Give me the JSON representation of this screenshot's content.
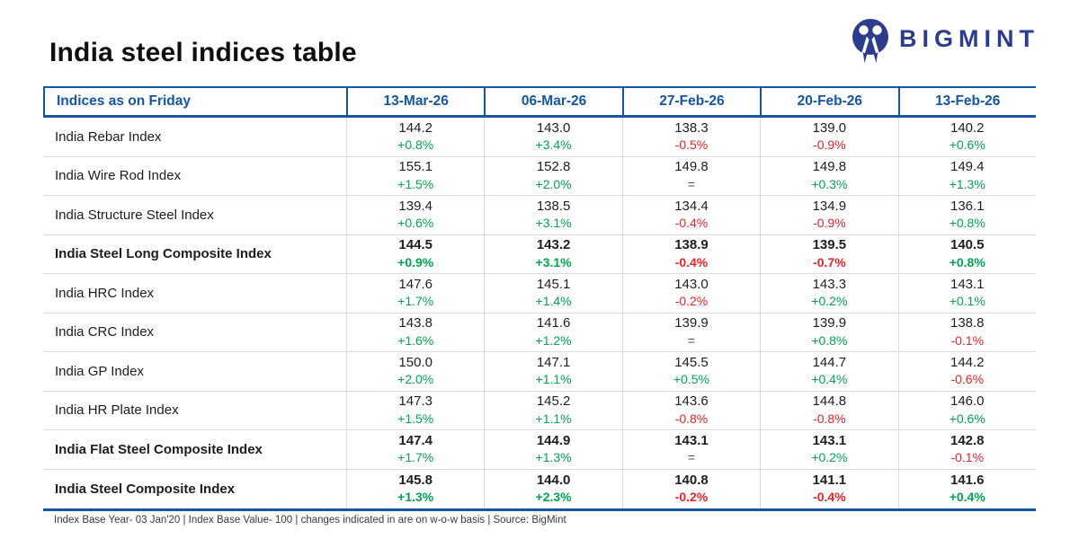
{
  "page": {
    "title": "India steel indices table",
    "brand": "BIGMINT",
    "footer": "Index Base Year- 03 Jan'20 | Index Base Value- 100 | changes indicated in are on w-o-w basis | Source: BigMint"
  },
  "colors": {
    "accent_blue": "#1456a4",
    "brand_navy": "#2c3d8f",
    "up_green": "#00a651",
    "down_red": "#e8232a",
    "neutral_equal_gray": "#4f4f4f"
  },
  "icons": {
    "brand_icon": "bigmint-people-m-monogram"
  },
  "chart_data": {
    "type": "table",
    "title": "India steel indices table",
    "header": [
      "Indices as on Friday",
      "13-Mar-26",
      "06-Mar-26",
      "27-Feb-26",
      "20-Feb-26",
      "13-Feb-26"
    ],
    "cell_format": [
      "index_value",
      "wow_change_percent",
      "change_direction"
    ],
    "rows": [
      {
        "label": "India Rebar Index",
        "bold": false,
        "pct_bold": false,
        "cells": [
          [
            "144.2",
            "+0.8%",
            "up"
          ],
          [
            "143.0",
            "+3.4%",
            "up"
          ],
          [
            "138.3",
            "-0.5%",
            "down"
          ],
          [
            "139.0",
            "-0.9%",
            "down"
          ],
          [
            "140.2",
            "+0.6%",
            "up"
          ]
        ]
      },
      {
        "label": "India Wire Rod Index",
        "bold": false,
        "pct_bold": false,
        "cells": [
          [
            "155.1",
            "+1.5%",
            "up"
          ],
          [
            "152.8",
            "+2.0%",
            "up"
          ],
          [
            "149.8",
            "=",
            "eq"
          ],
          [
            "149.8",
            "+0.3%",
            "up"
          ],
          [
            "149.4",
            "+1.3%",
            "up"
          ]
        ]
      },
      {
        "label": "India Structure Steel Index",
        "bold": false,
        "pct_bold": false,
        "cells": [
          [
            "139.4",
            "+0.6%",
            "up"
          ],
          [
            "138.5",
            "+3.1%",
            "up"
          ],
          [
            "134.4",
            "-0.4%",
            "down"
          ],
          [
            "134.9",
            "-0.9%",
            "down"
          ],
          [
            "136.1",
            "+0.8%",
            "up"
          ]
        ]
      },
      {
        "label": "India Steel Long Composite Index",
        "bold": true,
        "pct_bold": true,
        "cells": [
          [
            "144.5",
            "+0.9%",
            "up"
          ],
          [
            "143.2",
            "+3.1%",
            "up"
          ],
          [
            "138.9",
            "-0.4%",
            "down"
          ],
          [
            "139.5",
            "-0.7%",
            "down"
          ],
          [
            "140.5",
            "+0.8%",
            "up"
          ]
        ]
      },
      {
        "label": "India HRC Index",
        "bold": false,
        "pct_bold": false,
        "cells": [
          [
            "147.6",
            "+1.7%",
            "up"
          ],
          [
            "145.1",
            "+1.4%",
            "up"
          ],
          [
            "143.0",
            "-0.2%",
            "down"
          ],
          [
            "143.3",
            "+0.2%",
            "up"
          ],
          [
            "143.1",
            "+0.1%",
            "up"
          ]
        ]
      },
      {
        "label": "India CRC Index",
        "bold": false,
        "pct_bold": false,
        "cells": [
          [
            "143.8",
            "+1.6%",
            "up"
          ],
          [
            "141.6",
            "+1.2%",
            "up"
          ],
          [
            "139.9",
            "=",
            "eq"
          ],
          [
            "139.9",
            "+0.8%",
            "up"
          ],
          [
            "138.8",
            "-0.1%",
            "down"
          ]
        ]
      },
      {
        "label": "India GP Index",
        "bold": false,
        "pct_bold": false,
        "cells": [
          [
            "150.0",
            "+2.0%",
            "up"
          ],
          [
            "147.1",
            "+1.1%",
            "up"
          ],
          [
            "145.5",
            "+0.5%",
            "up"
          ],
          [
            "144.7",
            "+0.4%",
            "up"
          ],
          [
            "144.2",
            "-0.6%",
            "down"
          ]
        ]
      },
      {
        "label": "India HR Plate Index",
        "bold": false,
        "pct_bold": false,
        "cells": [
          [
            "147.3",
            "+1.5%",
            "up"
          ],
          [
            "145.2",
            "+1.1%",
            "up"
          ],
          [
            "143.6",
            "-0.8%",
            "down"
          ],
          [
            "144.8",
            "-0.8%",
            "down"
          ],
          [
            "146.0",
            "+0.6%",
            "up"
          ]
        ]
      },
      {
        "label": "India Flat Steel Composite Index",
        "bold": true,
        "pct_bold": false,
        "cells": [
          [
            "147.4",
            "+1.7%",
            "up"
          ],
          [
            "144.9",
            "+1.3%",
            "up"
          ],
          [
            "143.1",
            "=",
            "eq"
          ],
          [
            "143.1",
            "+0.2%",
            "up"
          ],
          [
            "142.8",
            "-0.1%",
            "down"
          ]
        ]
      },
      {
        "label": "India Steel Composite Index",
        "bold": true,
        "pct_bold": true,
        "cells": [
          [
            "145.8",
            "+1.3%",
            "up"
          ],
          [
            "144.0",
            "+2.3%",
            "up"
          ],
          [
            "140.8",
            "-0.2%",
            "down"
          ],
          [
            "141.1",
            "-0.4%",
            "down"
          ],
          [
            "141.6",
            "+0.4%",
            "up"
          ]
        ]
      }
    ]
  }
}
